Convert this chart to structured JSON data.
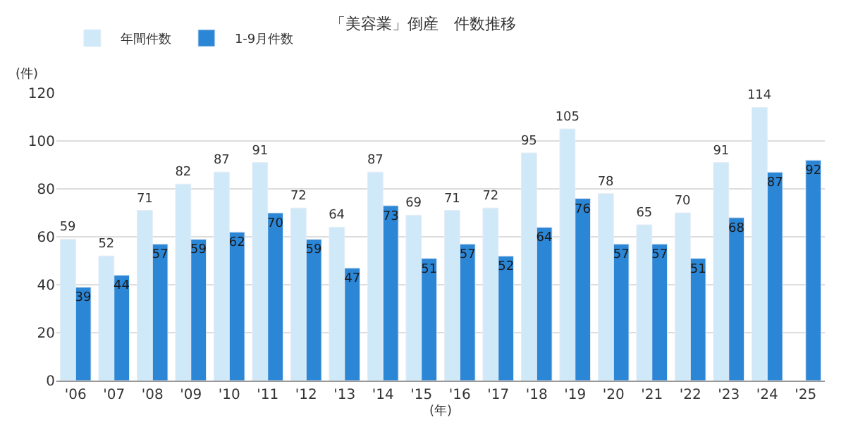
{
  "chart_data": {
    "type": "bar",
    "title": "「美容業」倒産　件数推移",
    "ylabel": "(件)",
    "xlabel": "(年)",
    "categories": [
      "'06",
      "'07",
      "'08",
      "'09",
      "'10",
      "'11",
      "'12",
      "'13",
      "'14",
      "'15",
      "'16",
      "'17",
      "'18",
      "'19",
      "'20",
      "'21",
      "'22",
      "'23",
      "'24",
      "'25"
    ],
    "series": [
      {
        "name": "年間件数",
        "color": "#cfe9f9",
        "values": [
          59,
          52,
          71,
          82,
          87,
          91,
          72,
          64,
          87,
          69,
          71,
          72,
          95,
          105,
          78,
          65,
          70,
          91,
          114,
          null
        ]
      },
      {
        "name": "1-9月件数",
        "color": "#2b86d6",
        "values": [
          39,
          44,
          57,
          59,
          62,
          70,
          59,
          47,
          73,
          51,
          57,
          52,
          64,
          76,
          57,
          57,
          51,
          68,
          87,
          92
        ]
      }
    ],
    "ylim": [
      0,
      120
    ],
    "yticks": [
      0,
      20,
      40,
      60,
      80,
      100,
      120
    ],
    "grid": "y",
    "legend": "top left",
    "data_labels": true
  }
}
